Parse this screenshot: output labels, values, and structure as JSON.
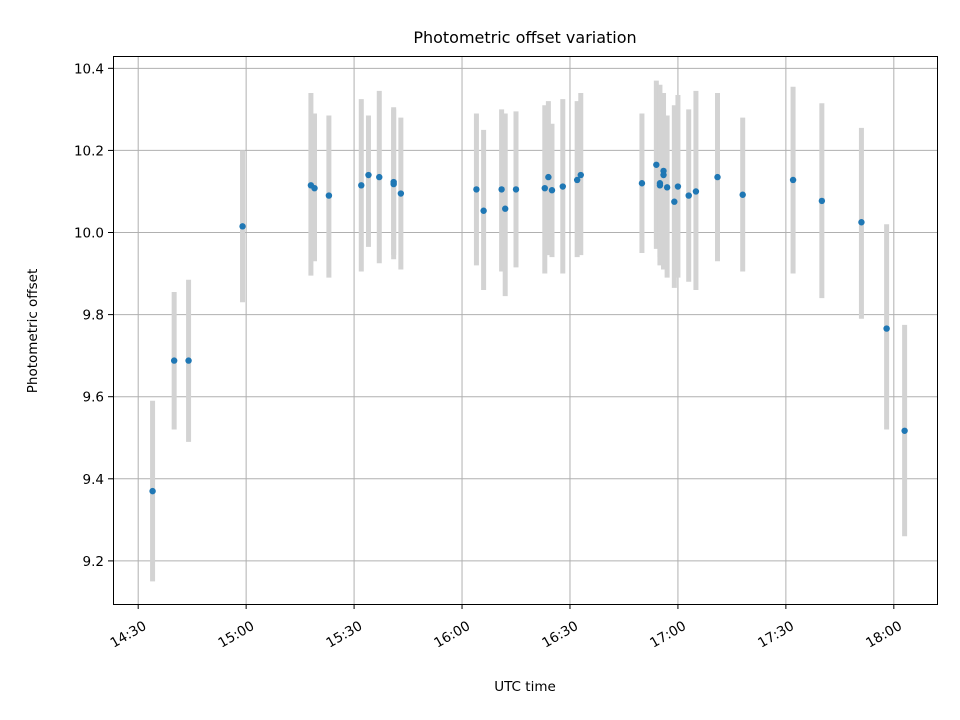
{
  "chart_data": {
    "type": "scatter",
    "title": "Photometric offset variation",
    "xlabel": "UTC time",
    "ylabel": "Photometric offset",
    "x_tick_labels": [
      "14:30",
      "15:00",
      "15:30",
      "16:00",
      "16:30",
      "17:00",
      "17:30",
      "18:00"
    ],
    "y_tick_labels": [
      "9.2",
      "9.4",
      "9.6",
      "9.8",
      "10.0",
      "10.2",
      "10.4"
    ],
    "xlim": [
      "14:23",
      "18:12"
    ],
    "ylim": [
      9.095,
      10.43
    ],
    "grid": true,
    "errorbar_color": "#d3d3d3",
    "point_color": "#1f77b4",
    "series": [
      {
        "x": [
          "14:34",
          "14:40",
          "14:44",
          "14:59",
          "15:18",
          "15:19",
          "15:23",
          "15:32",
          "15:34",
          "15:37",
          "15:41",
          "15:41",
          "15:43",
          "16:04",
          "16:06",
          "16:11",
          "16:12",
          "16:15",
          "16:23",
          "16:24",
          "16:25",
          "16:28",
          "16:32",
          "16:33",
          "16:50",
          "16:54",
          "16:55",
          "16:55",
          "16:56",
          "16:56",
          "16:57",
          "16:59",
          "17:00",
          "17:03",
          "17:05",
          "17:11",
          "17:18",
          "17:32",
          "17:40",
          "17:51",
          "17:58",
          "18:03"
        ],
        "y": [
          9.37,
          9.688,
          9.688,
          10.015,
          10.115,
          10.108,
          10.09,
          10.115,
          10.14,
          10.135,
          10.123,
          10.118,
          10.095,
          10.105,
          10.053,
          10.105,
          10.058,
          10.105,
          10.108,
          10.135,
          10.103,
          10.112,
          10.128,
          10.14,
          10.12,
          10.165,
          10.115,
          10.12,
          10.15,
          10.14,
          10.11,
          10.075,
          10.112,
          10.09,
          10.1,
          10.135,
          10.092,
          10.128,
          10.077,
          10.025,
          9.766,
          9.517
        ],
        "yerr_low": [
          9.15,
          9.52,
          9.49,
          9.83,
          9.895,
          9.93,
          9.89,
          9.905,
          9.965,
          9.925,
          9.945,
          9.935,
          9.91,
          9.92,
          9.86,
          9.905,
          9.845,
          9.915,
          9.9,
          9.945,
          9.94,
          9.9,
          9.94,
          9.945,
          9.95,
          9.96,
          9.92,
          9.94,
          9.91,
          9.91,
          9.89,
          9.865,
          9.89,
          9.88,
          9.86,
          9.93,
          9.905,
          9.9,
          9.84,
          9.79,
          9.52,
          9.26
        ],
        "yerr_high": [
          9.59,
          9.855,
          9.885,
          10.2,
          10.34,
          10.29,
          10.285,
          10.325,
          10.285,
          10.345,
          10.305,
          10.3,
          10.28,
          10.29,
          10.25,
          10.3,
          10.29,
          10.295,
          10.31,
          10.32,
          10.265,
          10.325,
          10.32,
          10.34,
          10.29,
          10.37,
          10.31,
          10.36,
          10.34,
          10.29,
          10.285,
          10.31,
          10.335,
          10.3,
          10.345,
          10.34,
          10.28,
          10.355,
          10.315,
          10.255,
          10.02,
          9.775
        ]
      }
    ]
  }
}
